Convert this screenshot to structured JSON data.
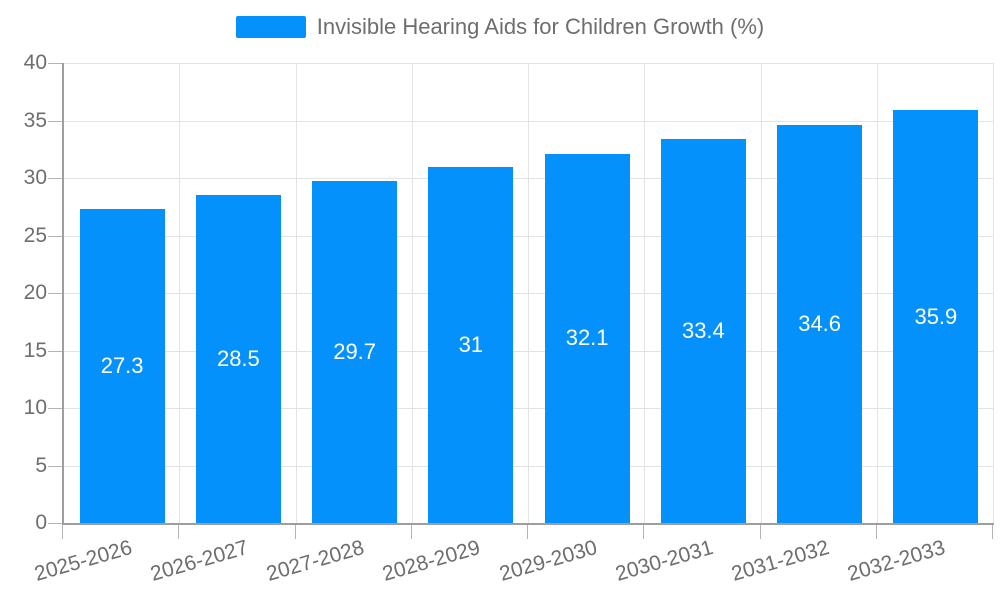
{
  "chart_data": {
    "type": "bar",
    "title": "Invisible Hearing Aids for Children Growth (%)",
    "legend_label": "Invisible Hearing Aids for Children Growth (%)",
    "legend_position": "top",
    "categories": [
      "2025-2026",
      "2026-2027",
      "2027-2028",
      "2028-2029",
      "2029-2030",
      "2030-2031",
      "2031-2032",
      "2032-2033"
    ],
    "values": [
      27.3,
      28.5,
      29.7,
      31,
      32.1,
      33.4,
      34.6,
      35.9
    ],
    "xlabel": "",
    "ylabel": "",
    "ylim": [
      0,
      40
    ],
    "yticks": [
      0,
      5,
      10,
      15,
      20,
      25,
      30,
      35,
      40
    ],
    "grid": true,
    "x_label_rotation_deg": -16,
    "value_labels_inside_bars": true,
    "colors": {
      "bar": "#0591fb",
      "bar_value_label": "#ffffff",
      "axis_line": "#9e9e9e",
      "tick": "#b3b3b3",
      "gridline": "#e3e3e3",
      "text": "#6e6e6e",
      "background": "#ffffff"
    }
  }
}
